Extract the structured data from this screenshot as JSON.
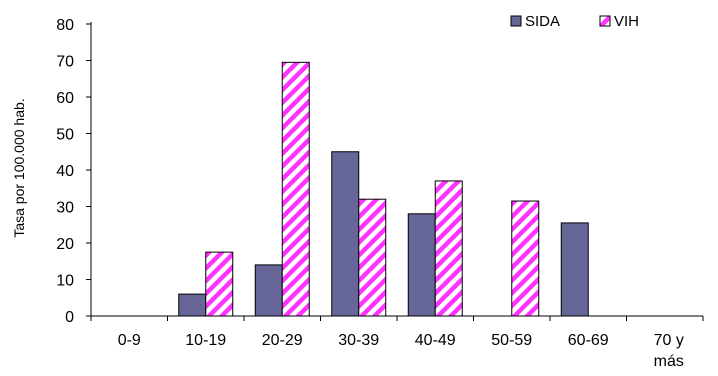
{
  "chart_data": {
    "type": "bar",
    "title": "",
    "xlabel": "",
    "ylabel": "Tasa por 100.000 hab.",
    "ylim": [
      0,
      80
    ],
    "yticks": [
      0,
      10,
      20,
      30,
      40,
      50,
      60,
      70,
      80
    ],
    "categories": [
      [
        "0-9"
      ],
      [
        "10-19"
      ],
      [
        "20-29"
      ],
      [
        "30-39"
      ],
      [
        "40-49"
      ],
      [
        "50-59"
      ],
      [
        "60-69"
      ],
      [
        "70 y",
        "más"
      ]
    ],
    "series": [
      {
        "name": "SIDA",
        "values": [
          0,
          6,
          14,
          45,
          28,
          0,
          25.5,
          0
        ]
      },
      {
        "name": "VIH",
        "values": [
          0,
          17.5,
          69.5,
          32,
          37,
          31.5,
          0,
          0
        ]
      }
    ],
    "legend_position": "top-right",
    "grid": false,
    "colors": {
      "SIDA": "#666699",
      "VIH_stripe_a": "#ff33ff",
      "VIH_stripe_b": "#ffffff"
    }
  }
}
